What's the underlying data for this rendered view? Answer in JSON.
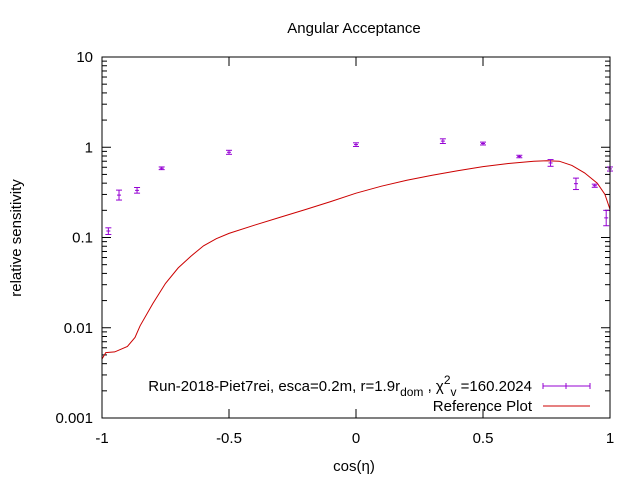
{
  "chart_data": {
    "type": "scatter",
    "title": "Angular Acceptance",
    "xlabel": "cos(η)",
    "ylabel": "relative sensitivity",
    "xlim": [
      -1,
      1
    ],
    "ylim": [
      0.001,
      10
    ],
    "yscale": "log",
    "grid": false,
    "legend_position": "bottom-right",
    "x_ticks": [
      {
        "value": -1,
        "label": "-1"
      },
      {
        "value": -0.5,
        "label": "-0.5"
      },
      {
        "value": 0,
        "label": "0"
      },
      {
        "value": 0.5,
        "label": "0.5"
      },
      {
        "value": 1,
        "label": "1"
      }
    ],
    "y_ticks": [
      {
        "value": 0.001,
        "label": "0.001"
      },
      {
        "value": 0.01,
        "label": "0.01"
      },
      {
        "value": 0.1,
        "label": "0.1"
      },
      {
        "value": 1,
        "label": "1"
      },
      {
        "value": 10,
        "label": "10"
      }
    ],
    "series": [
      {
        "name_parts": {
          "main": "Run-2018-Piet7rei, esca=0.2m, r=1.9r",
          "sub1": "dom",
          "mid": " , χ",
          "sup": "2",
          "sub2": "v",
          "tail": " =160.2024"
        },
        "kind": "errorbars",
        "color": "#9400d3",
        "points": [
          {
            "x": -0.975,
            "y": 0.118,
            "lo": 0.108,
            "hi": 0.128
          },
          {
            "x": -0.933,
            "y": 0.295,
            "lo": 0.26,
            "hi": 0.335
          },
          {
            "x": -0.862,
            "y": 0.333,
            "lo": 0.31,
            "hi": 0.358
          },
          {
            "x": -0.765,
            "y": 0.585,
            "lo": 0.565,
            "hi": 0.605
          },
          {
            "x": -0.5,
            "y": 0.88,
            "lo": 0.835,
            "hi": 0.925
          },
          {
            "x": 0.0,
            "y": 1.07,
            "lo": 1.02,
            "hi": 1.12
          },
          {
            "x": 0.342,
            "y": 1.17,
            "lo": 1.1,
            "hi": 1.24
          },
          {
            "x": 0.5,
            "y": 1.1,
            "lo": 1.06,
            "hi": 1.14
          },
          {
            "x": 0.643,
            "y": 0.79,
            "lo": 0.765,
            "hi": 0.815
          },
          {
            "x": 0.766,
            "y": 0.67,
            "lo": 0.615,
            "hi": 0.73
          },
          {
            "x": 0.866,
            "y": 0.395,
            "lo": 0.34,
            "hi": 0.455
          },
          {
            "x": 0.94,
            "y": 0.375,
            "lo": 0.36,
            "hi": 0.39
          },
          {
            "x": 0.985,
            "y": 0.165,
            "lo": 0.135,
            "hi": 0.2
          },
          {
            "x": 1.0,
            "y": 0.575,
            "lo": 0.545,
            "hi": 0.605
          }
        ]
      },
      {
        "name": "Reference Plot",
        "kind": "line",
        "color": "#cc0000",
        "points": [
          {
            "x": -1.0,
            "y": 0.0045
          },
          {
            "x": -0.985,
            "y": 0.0053
          },
          {
            "x": -0.95,
            "y": 0.0054
          },
          {
            "x": -0.9,
            "y": 0.0062
          },
          {
            "x": -0.87,
            "y": 0.0078
          },
          {
            "x": -0.85,
            "y": 0.0105
          },
          {
            "x": -0.8,
            "y": 0.0185
          },
          {
            "x": -0.75,
            "y": 0.031
          },
          {
            "x": -0.7,
            "y": 0.046
          },
          {
            "x": -0.65,
            "y": 0.062
          },
          {
            "x": -0.6,
            "y": 0.081
          },
          {
            "x": -0.55,
            "y": 0.097
          },
          {
            "x": -0.5,
            "y": 0.111
          },
          {
            "x": -0.4,
            "y": 0.137
          },
          {
            "x": -0.3,
            "y": 0.167
          },
          {
            "x": -0.2,
            "y": 0.204
          },
          {
            "x": -0.1,
            "y": 0.25
          },
          {
            "x": 0.0,
            "y": 0.31
          },
          {
            "x": 0.1,
            "y": 0.37
          },
          {
            "x": 0.2,
            "y": 0.43
          },
          {
            "x": 0.3,
            "y": 0.49
          },
          {
            "x": 0.4,
            "y": 0.55
          },
          {
            "x": 0.5,
            "y": 0.61
          },
          {
            "x": 0.6,
            "y": 0.66
          },
          {
            "x": 0.7,
            "y": 0.7
          },
          {
            "x": 0.75,
            "y": 0.71
          },
          {
            "x": 0.8,
            "y": 0.7
          },
          {
            "x": 0.85,
            "y": 0.63
          },
          {
            "x": 0.9,
            "y": 0.52
          },
          {
            "x": 0.95,
            "y": 0.4
          },
          {
            "x": 0.98,
            "y": 0.3
          },
          {
            "x": 1.0,
            "y": 0.205
          }
        ]
      }
    ]
  }
}
